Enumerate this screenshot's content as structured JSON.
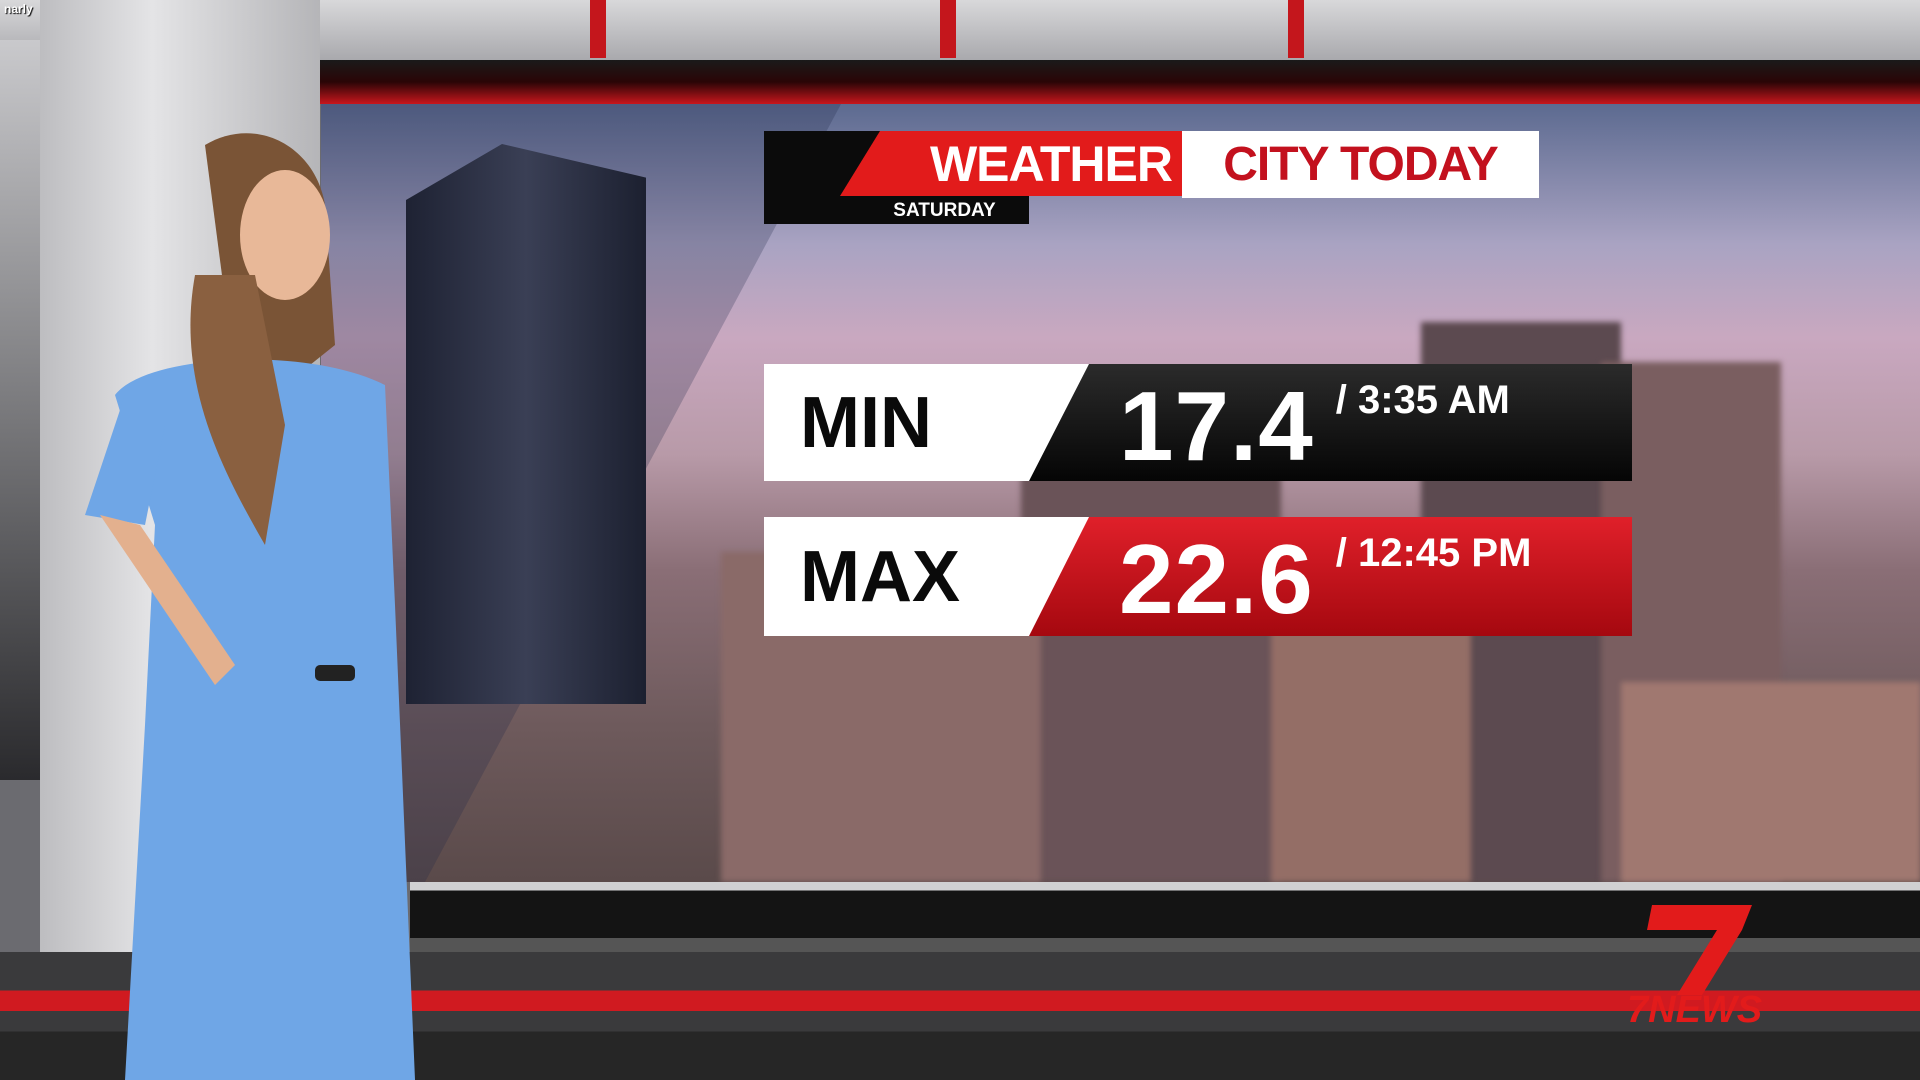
{
  "corner_text": "narly",
  "graphic": {
    "brand": "WEATHER",
    "title": "CITY TODAY",
    "day": "SATURDAY",
    "rows": [
      {
        "label": "MIN",
        "value": "17.4",
        "time": "/ 3:35 AM"
      },
      {
        "label": "MAX",
        "value": "22.6",
        "time": "/ 12:45 PM"
      }
    ]
  },
  "logo": {
    "text": "7NEWS",
    "color": "#e21b1b"
  },
  "colors": {
    "accent_red": "#e21b1b",
    "title_red": "#c3111e",
    "dark": "#0b0b0b",
    "dress_blue": "#6fa6e6"
  }
}
